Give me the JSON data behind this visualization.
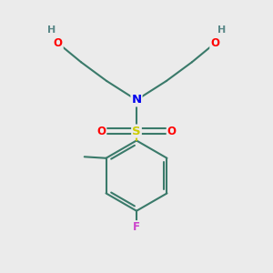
{
  "bg_color": "#ebebeb",
  "bond_color": "#3a7a6a",
  "bond_width": 1.5,
  "atom_colors": {
    "N": "#0000ee",
    "S": "#cccc00",
    "O": "#ff0000",
    "F": "#cc44cc",
    "H": "#5a8888",
    "C": "#3a7a6a"
  },
  "font_size": 8.5
}
